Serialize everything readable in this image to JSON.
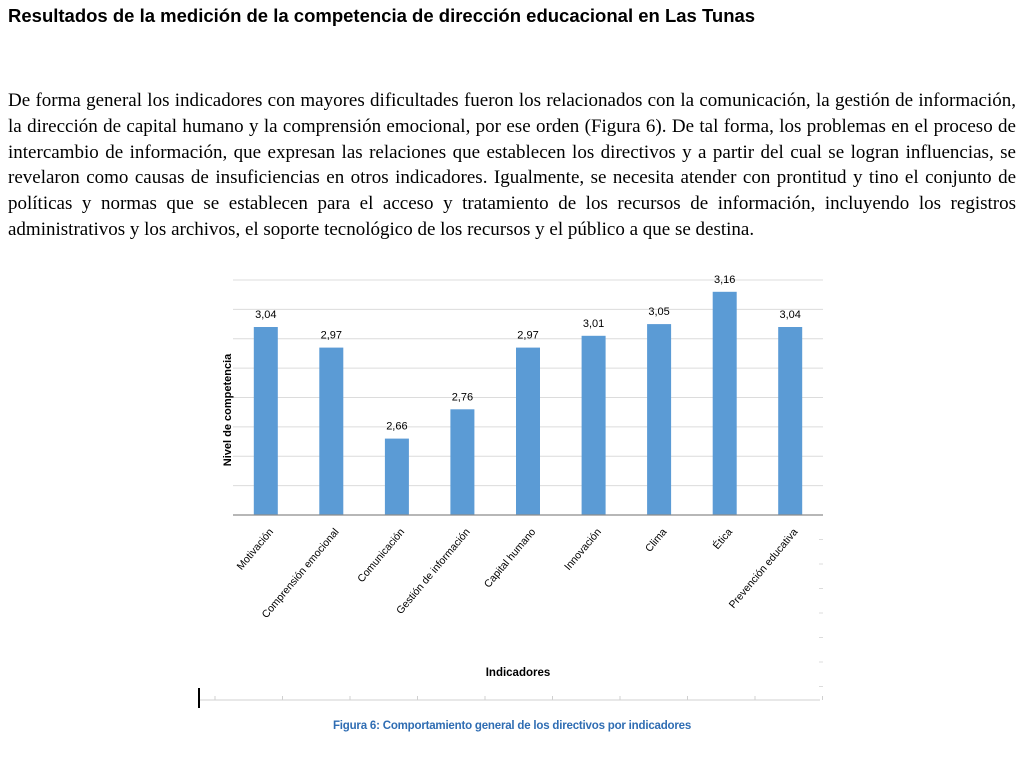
{
  "page": {
    "title": "Resultados de la medición de la competencia de dirección educacional en Las Tunas",
    "paragraph": "De forma general los indicadores con mayores dificultades fueron los relacionados con la comunicación, la gestión de información, la dirección de capital humano y la comprensión emocional, por ese orden (Figura 6). De tal forma, los problemas en el proceso de intercambio de información, que expresan las relaciones que establecen los directivos y a partir del cual se logran influencias, se revelaron como causas de insuficiencias en otros indicadores. Igualmente, se necesita atender con prontitud y tino el conjunto de políticas y normas que se establecen para el acceso y tratamiento de los recursos de información, incluyendo los registros administrativos y los archivos, el soporte tecnológico de los recursos y el público a que se destina.",
    "caption": "Figura 6: Comportamiento general de los directivos por indicadores"
  },
  "chart_data": {
    "type": "bar",
    "title": "",
    "xlabel": "Indicadores",
    "ylabel": "Nivel de competencia",
    "categories": [
      "Motivación",
      "Comprensión emocional",
      "Comunicación",
      "Gestión de información",
      "Capital humano",
      "Innovación",
      "Clima",
      "Ética",
      "Prevención educativa"
    ],
    "values": [
      3.04,
      2.97,
      2.66,
      2.76,
      2.97,
      3.01,
      3.05,
      3.16,
      3.04
    ],
    "data_labels": [
      "3,04",
      "2,97",
      "2,66",
      "2,76",
      "2,97",
      "3,01",
      "3,05",
      "3,16",
      "3,04"
    ],
    "ylim": [
      2.4,
      3.2
    ],
    "grid": true,
    "legend": "none",
    "bar_color": "#5b9bd5",
    "grid_color": "#dcdcdc"
  }
}
